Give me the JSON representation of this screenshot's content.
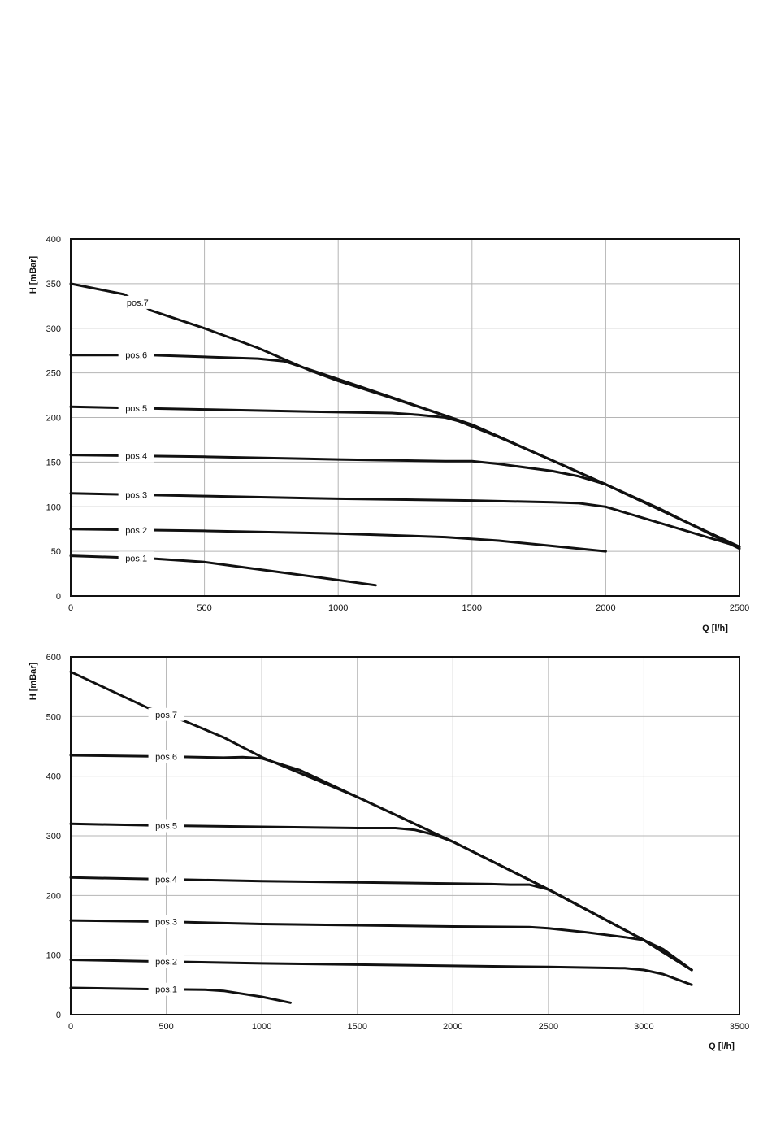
{
  "chart_data": [
    {
      "type": "line",
      "xlabel": "Q [l/h]",
      "ylabel": "H [mBar]",
      "xlim": [
        0,
        2500
      ],
      "ylim": [
        0,
        400
      ],
      "xticks": [
        "0",
        "500",
        "1000",
        "1500",
        "2000",
        "2500"
      ],
      "yticks": [
        "0",
        "50",
        "100",
        "150",
        "200",
        "250",
        "300",
        "350",
        "400"
      ],
      "grid": true,
      "series": [
        {
          "name": "pos.1",
          "x": [
            0,
            300,
            500,
            700,
            900,
            1140
          ],
          "y": [
            45,
            42,
            38,
            30,
            22,
            12
          ]
        },
        {
          "name": "pos.2",
          "x": [
            0,
            500,
            1000,
            1200,
            1400,
            1600,
            1800,
            2000
          ],
          "y": [
            75,
            73,
            70,
            68,
            66,
            62,
            56,
            50
          ]
        },
        {
          "name": "pos.3",
          "x": [
            0,
            500,
            1000,
            1500,
            1800,
            1900,
            2000,
            2500
          ],
          "y": [
            115,
            112,
            109,
            107,
            105,
            104,
            100,
            55
          ]
        },
        {
          "name": "pos.4",
          "x": [
            0,
            500,
            1000,
            1400,
            1500,
            1600,
            1800,
            1900,
            2000,
            2500
          ],
          "y": [
            158,
            156,
            153,
            151,
            151,
            148,
            140,
            134,
            125,
            55
          ]
        },
        {
          "name": "pos.5",
          "x": [
            0,
            500,
            1000,
            1200,
            1300,
            1400,
            1500,
            2000,
            2500
          ],
          "y": [
            212,
            209,
            206,
            205,
            203,
            200,
            192,
            125,
            55
          ]
        },
        {
          "name": "pos.6",
          "x": [
            0,
            300,
            500,
            700,
            800,
            1000,
            1500,
            2000,
            2500
          ],
          "y": [
            270,
            270,
            268,
            266,
            263,
            243,
            192,
            125,
            55
          ]
        },
        {
          "name": "pos.7",
          "x": [
            0,
            200,
            300,
            500,
            700,
            900,
            1000,
            1200,
            1400,
            1600,
            1800,
            2000,
            2200,
            2500
          ],
          "y": [
            350,
            338,
            320,
            300,
            278,
            252,
            241,
            222,
            202,
            178,
            152,
            125,
            98,
            53
          ]
        }
      ],
      "label_x": [
        200,
        250,
        400
      ]
    },
    {
      "type": "line",
      "xlabel": "Q [l/h]",
      "ylabel": "H [mBar]",
      "xlim": [
        0,
        3500
      ],
      "ylim": [
        0,
        600
      ],
      "xticks": [
        "0",
        "500",
        "1000",
        "1500",
        "2000",
        "2500",
        "3000",
        "3500"
      ],
      "yticks": [
        "0",
        "100",
        "200",
        "300",
        "400",
        "500",
        "600"
      ],
      "grid": true,
      "series": [
        {
          "name": "pos.1",
          "x": [
            0,
            400,
            700,
            800,
            900,
            1000,
            1150
          ],
          "y": [
            45,
            43,
            42,
            40,
            35,
            30,
            20
          ]
        },
        {
          "name": "pos.2",
          "x": [
            0,
            500,
            1000,
            1500,
            2000,
            2500,
            2900,
            3000,
            3100,
            3250
          ],
          "y": [
            92,
            89,
            86,
            84,
            82,
            80,
            78,
            75,
            68,
            50
          ]
        },
        {
          "name": "pos.3",
          "x": [
            0,
            500,
            1000,
            1500,
            2000,
            2400,
            2500,
            2700,
            2900,
            3000,
            3100,
            3250
          ],
          "y": [
            158,
            156,
            152,
            150,
            148,
            147,
            145,
            138,
            130,
            125,
            110,
            75
          ]
        },
        {
          "name": "pos.4",
          "x": [
            0,
            500,
            1000,
            1500,
            2000,
            2200,
            2300,
            2400,
            2500,
            3000,
            3250
          ],
          "y": [
            230,
            227,
            224,
            222,
            220,
            219,
            218,
            218,
            210,
            125,
            75
          ]
        },
        {
          "name": "pos.5",
          "x": [
            0,
            500,
            1000,
            1500,
            1700,
            1800,
            1900,
            2000,
            2500,
            3000,
            3250
          ],
          "y": [
            320,
            317,
            315,
            313,
            313,
            310,
            302,
            290,
            210,
            125,
            75
          ]
        },
        {
          "name": "pos.6",
          "x": [
            0,
            500,
            800,
            900,
            1000,
            1200,
            1500,
            2000,
            2500,
            3000,
            3250
          ],
          "y": [
            435,
            433,
            431,
            432,
            430,
            410,
            365,
            290,
            210,
            125,
            75
          ]
        },
        {
          "name": "pos.7",
          "x": [
            0,
            200,
            400,
            600,
            800,
            1000,
            1500,
            2000,
            2500,
            3000,
            3250
          ],
          "y": [
            575,
            545,
            515,
            492,
            465,
            432,
            365,
            290,
            210,
            125,
            75
          ]
        }
      ],
      "label_x": [
        500,
        500,
        500
      ]
    }
  ]
}
